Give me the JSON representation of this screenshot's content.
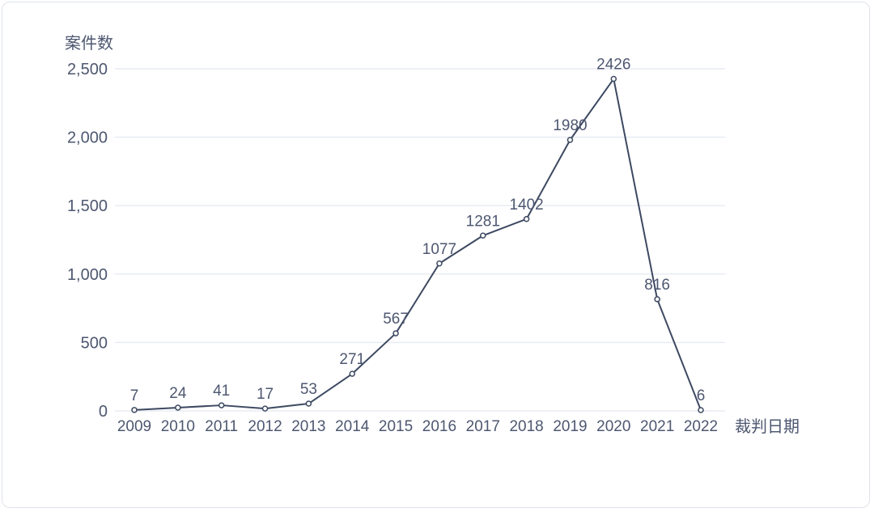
{
  "chart_data": {
    "type": "line",
    "title": "",
    "xlabel": "裁判日期",
    "ylabel": "案件数",
    "categories": [
      "2009",
      "2010",
      "2011",
      "2012",
      "2013",
      "2014",
      "2015",
      "2016",
      "2017",
      "2018",
      "2019",
      "2020",
      "2021",
      "2022"
    ],
    "values": [
      7,
      24,
      41,
      17,
      53,
      271,
      567,
      1077,
      1281,
      1402,
      1980,
      2426,
      816,
      6
    ],
    "data_labels": [
      "7",
      "24",
      "41",
      "17",
      "53",
      "271",
      "567",
      "1077",
      "1281",
      "1402",
      "1980",
      "2426",
      "816",
      "6"
    ],
    "ylim": [
      0,
      2500
    ],
    "yticks": [
      0,
      500,
      1000,
      1500,
      2000,
      2500
    ],
    "ytick_labels": [
      "0",
      "500",
      "1,000",
      "1,500",
      "2,000",
      "2,500"
    ],
    "grid": true,
    "legend": "none",
    "marker": "open-circle",
    "colors": {
      "line": "#3d4961",
      "marker_fill": "#ffffff",
      "text": "#4d5770",
      "grid": "#e8ecf3",
      "card_border": "#dee3ea",
      "background": "#ffffff"
    }
  }
}
